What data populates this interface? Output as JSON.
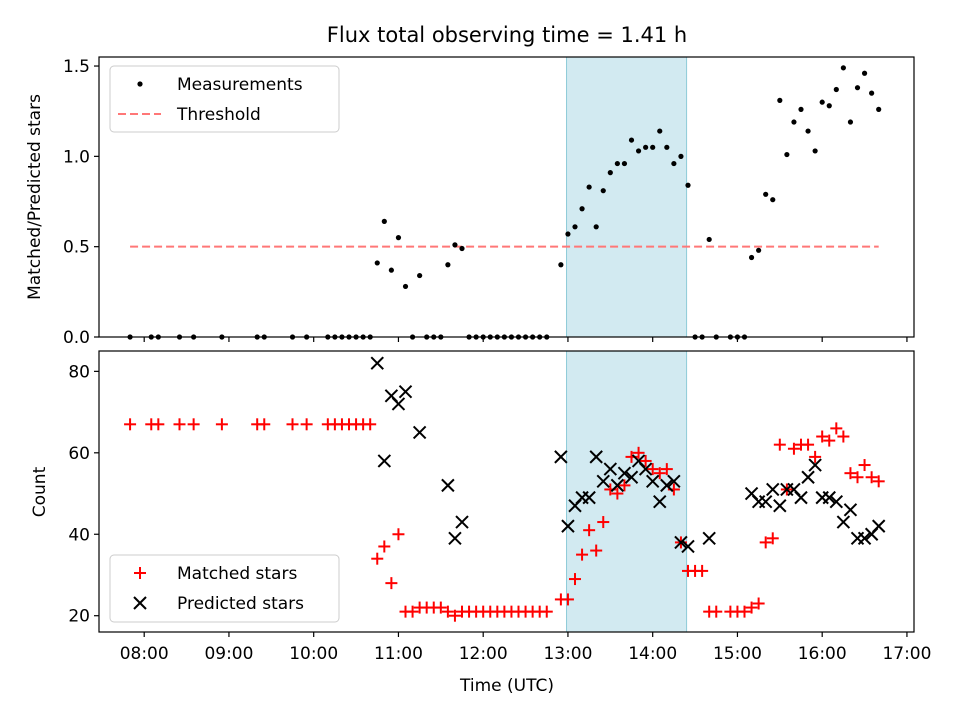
{
  "chart_data": [
    {
      "type": "scatter",
      "title": "Flux total observing time = 1.41 h",
      "xlabel": "",
      "ylabel": "Matched/Predicted stars",
      "ylim": [
        0,
        1.55
      ],
      "yticks": [
        0.0,
        0.5,
        1.0,
        1.5
      ],
      "yticklabels": [
        "0.0",
        "0.5",
        "1.0",
        "1.5"
      ],
      "xlim": [
        "07:28",
        "17:05"
      ],
      "shaded_region": [
        "12:59",
        "14:24"
      ],
      "shaded_color": "#add8e6",
      "legend_position": "upper left",
      "series": [
        {
          "name": "Measurements",
          "color": "#000000",
          "marker": "dot",
          "points": [
            [
              "07:50",
              0
            ],
            [
              "08:05",
              0
            ],
            [
              "08:10",
              0
            ],
            [
              "08:25",
              0
            ],
            [
              "08:35",
              0
            ],
            [
              "08:55",
              0
            ],
            [
              "09:20",
              0
            ],
            [
              "09:25",
              0
            ],
            [
              "09:45",
              0
            ],
            [
              "09:55",
              0
            ],
            [
              "10:10",
              0
            ],
            [
              "10:15",
              0
            ],
            [
              "10:20",
              0
            ],
            [
              "10:25",
              0
            ],
            [
              "10:30",
              0
            ],
            [
              "10:35",
              0
            ],
            [
              "10:40",
              0
            ],
            [
              "10:45",
              0.41
            ],
            [
              "10:50",
              0.64
            ],
            [
              "10:55",
              0.37
            ],
            [
              "11:00",
              0.55
            ],
            [
              "11:05",
              0.28
            ],
            [
              "11:10",
              0
            ],
            [
              "11:15",
              0.34
            ],
            [
              "11:20",
              0
            ],
            [
              "11:25",
              0
            ],
            [
              "11:30",
              0
            ],
            [
              "11:35",
              0.4
            ],
            [
              "11:40",
              0.51
            ],
            [
              "11:45",
              0.49
            ],
            [
              "11:50",
              0
            ],
            [
              "11:55",
              0
            ],
            [
              "12:00",
              0
            ],
            [
              "12:05",
              0
            ],
            [
              "12:10",
              0
            ],
            [
              "12:15",
              0
            ],
            [
              "12:20",
              0
            ],
            [
              "12:25",
              0
            ],
            [
              "12:30",
              0
            ],
            [
              "12:35",
              0
            ],
            [
              "12:40",
              0
            ],
            [
              "12:45",
              0
            ],
            [
              "12:55",
              0.4
            ],
            [
              "13:00",
              0.57
            ],
            [
              "13:05",
              0.61
            ],
            [
              "13:10",
              0.71
            ],
            [
              "13:15",
              0.83
            ],
            [
              "13:20",
              0.61
            ],
            [
              "13:25",
              0.81
            ],
            [
              "13:30",
              0.91
            ],
            [
              "13:35",
              0.96
            ],
            [
              "13:40",
              0.96
            ],
            [
              "13:45",
              1.09
            ],
            [
              "13:50",
              1.03
            ],
            [
              "13:55",
              1.05
            ],
            [
              "14:00",
              1.05
            ],
            [
              "14:05",
              1.14
            ],
            [
              "14:10",
              1.05
            ],
            [
              "14:15",
              0.96
            ],
            [
              "14:20",
              1.0
            ],
            [
              "14:25",
              0.84
            ],
            [
              "14:30",
              0
            ],
            [
              "14:35",
              0
            ],
            [
              "14:40",
              0.54
            ],
            [
              "14:45",
              0
            ],
            [
              "14:55",
              0
            ],
            [
              "15:00",
              0
            ],
            [
              "15:05",
              0
            ],
            [
              "15:10",
              0.44
            ],
            [
              "15:15",
              0.48
            ],
            [
              "15:20",
              0.79
            ],
            [
              "15:25",
              0.76
            ],
            [
              "15:30",
              1.31
            ],
            [
              "15:35",
              1.01
            ],
            [
              "15:40",
              1.19
            ],
            [
              "15:45",
              1.26
            ],
            [
              "15:50",
              1.14
            ],
            [
              "15:55",
              1.03
            ],
            [
              "16:00",
              1.3
            ],
            [
              "16:05",
              1.28
            ],
            [
              "16:10",
              1.37
            ],
            [
              "16:15",
              1.49
            ],
            [
              "16:20",
              1.19
            ],
            [
              "16:25",
              1.38
            ],
            [
              "16:30",
              1.46
            ],
            [
              "16:35",
              1.35
            ],
            [
              "16:40",
              1.26
            ]
          ]
        },
        {
          "name": "Threshold",
          "color": "#ff7777",
          "marker": "dashed-line",
          "points": [
            [
              "07:50",
              0.5
            ],
            [
              "16:40",
              0.5
            ]
          ]
        }
      ]
    },
    {
      "type": "scatter",
      "title": "",
      "xlabel": "Time (UTC)",
      "ylabel": "Count",
      "ylim": [
        16,
        85
      ],
      "yticks": [
        20,
        40,
        60,
        80
      ],
      "yticklabels": [
        "20",
        "40",
        "60",
        "80"
      ],
      "xlim": [
        "07:28",
        "17:05"
      ],
      "xticks": [
        "08:00",
        "09:00",
        "10:00",
        "11:00",
        "12:00",
        "13:00",
        "14:00",
        "15:00",
        "16:00",
        "17:00"
      ],
      "shaded_region": [
        "12:59",
        "14:24"
      ],
      "shaded_color": "#add8e6",
      "legend_position": "lower left",
      "series": [
        {
          "name": "Matched stars",
          "color": "#ff0000",
          "marker": "plus",
          "points": [
            [
              "07:50",
              67
            ],
            [
              "08:05",
              67
            ],
            [
              "08:10",
              67
            ],
            [
              "08:25",
              67
            ],
            [
              "08:35",
              67
            ],
            [
              "08:55",
              67
            ],
            [
              "09:20",
              67
            ],
            [
              "09:25",
              67
            ],
            [
              "09:45",
              67
            ],
            [
              "09:55",
              67
            ],
            [
              "10:10",
              67
            ],
            [
              "10:15",
              67
            ],
            [
              "10:20",
              67
            ],
            [
              "10:25",
              67
            ],
            [
              "10:30",
              67
            ],
            [
              "10:35",
              67
            ],
            [
              "10:40",
              67
            ],
            [
              "10:45",
              34
            ],
            [
              "10:50",
              37
            ],
            [
              "10:55",
              28
            ],
            [
              "11:00",
              40
            ],
            [
              "11:05",
              21
            ],
            [
              "11:10",
              21
            ],
            [
              "11:15",
              22
            ],
            [
              "11:20",
              22
            ],
            [
              "11:25",
              22
            ],
            [
              "11:30",
              22
            ],
            [
              "11:35",
              21
            ],
            [
              "11:40",
              20
            ],
            [
              "11:45",
              21
            ],
            [
              "11:50",
              21
            ],
            [
              "11:55",
              21
            ],
            [
              "12:00",
              21
            ],
            [
              "12:05",
              21
            ],
            [
              "12:10",
              21
            ],
            [
              "12:15",
              21
            ],
            [
              "12:20",
              21
            ],
            [
              "12:25",
              21
            ],
            [
              "12:30",
              21
            ],
            [
              "12:35",
              21
            ],
            [
              "12:40",
              21
            ],
            [
              "12:45",
              21
            ],
            [
              "12:55",
              24
            ],
            [
              "13:00",
              24
            ],
            [
              "13:05",
              29
            ],
            [
              "13:10",
              35
            ],
            [
              "13:15",
              41
            ],
            [
              "13:20",
              36
            ],
            [
              "13:25",
              43
            ],
            [
              "13:30",
              51
            ],
            [
              "13:35",
              50
            ],
            [
              "13:40",
              52
            ],
            [
              "13:45",
              59
            ],
            [
              "13:50",
              60
            ],
            [
              "13:55",
              58
            ],
            [
              "14:00",
              56
            ],
            [
              "14:05",
              55
            ],
            [
              "14:10",
              56
            ],
            [
              "14:15",
              51
            ],
            [
              "14:20",
              38
            ],
            [
              "14:25",
              31
            ],
            [
              "14:30",
              31
            ],
            [
              "14:35",
              31
            ],
            [
              "14:40",
              21
            ],
            [
              "14:45",
              21
            ],
            [
              "14:55",
              21
            ],
            [
              "15:00",
              21
            ],
            [
              "15:05",
              21
            ],
            [
              "15:10",
              22
            ],
            [
              "15:15",
              23
            ],
            [
              "15:20",
              38
            ],
            [
              "15:25",
              39
            ],
            [
              "15:30",
              62
            ],
            [
              "15:35",
              51
            ],
            [
              "15:40",
              61
            ],
            [
              "15:45",
              62
            ],
            [
              "15:50",
              62
            ],
            [
              "15:55",
              59
            ],
            [
              "16:00",
              64
            ],
            [
              "16:05",
              63
            ],
            [
              "16:10",
              66
            ],
            [
              "16:15",
              64
            ],
            [
              "16:20",
              55
            ],
            [
              "16:25",
              54
            ],
            [
              "16:30",
              57
            ],
            [
              "16:35",
              54
            ],
            [
              "16:40",
              53
            ]
          ]
        },
        {
          "name": "Predicted stars",
          "color": "#000000",
          "marker": "x",
          "points": [
            [
              "10:45",
              82
            ],
            [
              "10:50",
              58
            ],
            [
              "10:55",
              74
            ],
            [
              "11:00",
              72
            ],
            [
              "11:05",
              75
            ],
            [
              "11:15",
              65
            ],
            [
              "11:35",
              52
            ],
            [
              "11:40",
              39
            ],
            [
              "11:45",
              43
            ],
            [
              "12:55",
              59
            ],
            [
              "13:00",
              42
            ],
            [
              "13:05",
              47
            ],
            [
              "13:10",
              49
            ],
            [
              "13:15",
              49
            ],
            [
              "13:20",
              59
            ],
            [
              "13:25",
              53
            ],
            [
              "13:30",
              56
            ],
            [
              "13:35",
              52
            ],
            [
              "13:40",
              55
            ],
            [
              "13:45",
              54
            ],
            [
              "13:50",
              58
            ],
            [
              "13:55",
              56
            ],
            [
              "14:00",
              53
            ],
            [
              "14:05",
              48
            ],
            [
              "14:10",
              52
            ],
            [
              "14:15",
              53
            ],
            [
              "14:20",
              38
            ],
            [
              "14:25",
              37
            ],
            [
              "14:40",
              39
            ],
            [
              "15:10",
              50
            ],
            [
              "15:15",
              48
            ],
            [
              "15:20",
              48
            ],
            [
              "15:25",
              51
            ],
            [
              "15:30",
              47
            ],
            [
              "15:35",
              51
            ],
            [
              "15:40",
              51
            ],
            [
              "15:45",
              49
            ],
            [
              "15:50",
              54
            ],
            [
              "15:55",
              57
            ],
            [
              "16:00",
              49
            ],
            [
              "16:05",
              49
            ],
            [
              "16:10",
              48
            ],
            [
              "16:15",
              43
            ],
            [
              "16:20",
              46
            ],
            [
              "16:25",
              39
            ],
            [
              "16:30",
              39
            ],
            [
              "16:35",
              40
            ],
            [
              "16:40",
              42
            ]
          ]
        }
      ]
    }
  ]
}
